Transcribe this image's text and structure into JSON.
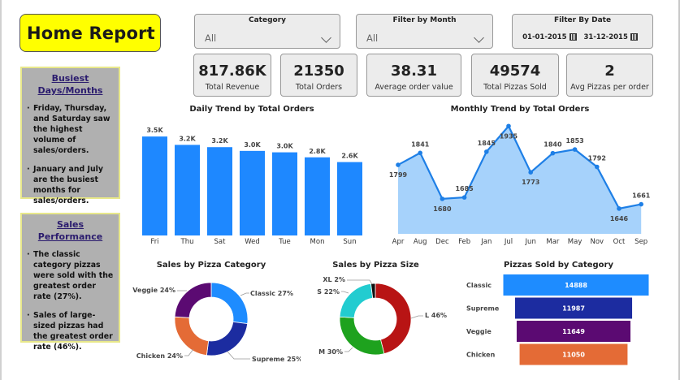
{
  "header": {
    "title": "Home Report"
  },
  "notes": [
    {
      "title": "Busiest Days/Months",
      "items": [
        "Friday, Thursday, and Saturday saw the highest volume of sales/orders.",
        "January and July are the busiest months for sales/orders."
      ]
    },
    {
      "title": "Sales Performance",
      "items": [
        "The classic category pizzas were sold with the greatest order rate (27%).",
        "Sales of large-sized pizzas had the greatest order rate (46%)."
      ]
    }
  ],
  "filters": {
    "category": {
      "label": "Category",
      "value": "All"
    },
    "month": {
      "label": "Filter by Month",
      "value": "All"
    },
    "date": {
      "label": "Filter By Date",
      "start": "01-01-2015",
      "end": "31-12-2015"
    }
  },
  "kpis": [
    {
      "value": "817.86K",
      "label": "Total Revenue"
    },
    {
      "value": "21350",
      "label": "Total Orders"
    },
    {
      "value": "38.31",
      "label": "Average order value"
    },
    {
      "value": "49574",
      "label": "Total Pizzas Sold"
    },
    {
      "value": "2",
      "label": "Avg Pizzas per order"
    }
  ],
  "colors": {
    "bar": "#1E88FF",
    "line": "#1E7FE6",
    "area": "#A6D2FB",
    "classic": "#1E8CFF",
    "supreme": "#1C2CA0",
    "veggie": "#5B0A72",
    "chicken": "#E46B36",
    "size_l": "#B81414",
    "size_m": "#1EA21E",
    "size_s": "#22CCD0",
    "size_xl": "#111111"
  },
  "chart_data": [
    {
      "type": "bar",
      "title": "Daily Trend by Total Orders",
      "categories": [
        "Fri",
        "Thu",
        "Sat",
        "Wed",
        "Tue",
        "Mon",
        "Sun"
      ],
      "values": [
        3538,
        3239,
        3158,
        3024,
        2973,
        2794,
        2624
      ],
      "labels": [
        "3.5K",
        "3.2K",
        "3.2K",
        "3.0K",
        "3.0K",
        "2.8K",
        "2.6K"
      ],
      "xlabel": "",
      "ylabel": "",
      "ylim": [
        0,
        3600
      ],
      "grid": false
    },
    {
      "type": "area",
      "title": "Monthly Trend by Total Orders",
      "categories": [
        "Apr",
        "Aug",
        "Dec",
        "Feb",
        "Jan",
        "Jul",
        "Jun",
        "Mar",
        "May",
        "Nov",
        "Oct",
        "Sep"
      ],
      "values": [
        1799,
        1841,
        1680,
        1685,
        1845,
        1935,
        1773,
        1840,
        1853,
        1792,
        1646,
        1661
      ],
      "ylim": [
        1600,
        1950
      ],
      "grid": false
    },
    {
      "type": "pie",
      "title": "Sales by Pizza Category",
      "categories": [
        "Classic",
        "Supreme",
        "Chicken",
        "Veggie"
      ],
      "values": [
        27,
        25,
        24,
        24
      ],
      "labels": [
        "Classic 27%",
        "Supreme 25%",
        "Chicken 24%",
        "Veggie 24%"
      ]
    },
    {
      "type": "pie",
      "title": "Sales by Pizza Size",
      "categories": [
        "L",
        "M",
        "S",
        "XL"
      ],
      "values": [
        46,
        30,
        22,
        2
      ],
      "labels": [
        "L 46%",
        "M 30%",
        "S 22%",
        "XL 2%"
      ]
    },
    {
      "type": "bar",
      "title": "Pizzas Sold by Category",
      "orientation": "horizontal-funnel",
      "categories": [
        "Classic",
        "Supreme",
        "Veggie",
        "Chicken"
      ],
      "values": [
        14888,
        11987,
        11649,
        11050
      ]
    }
  ]
}
